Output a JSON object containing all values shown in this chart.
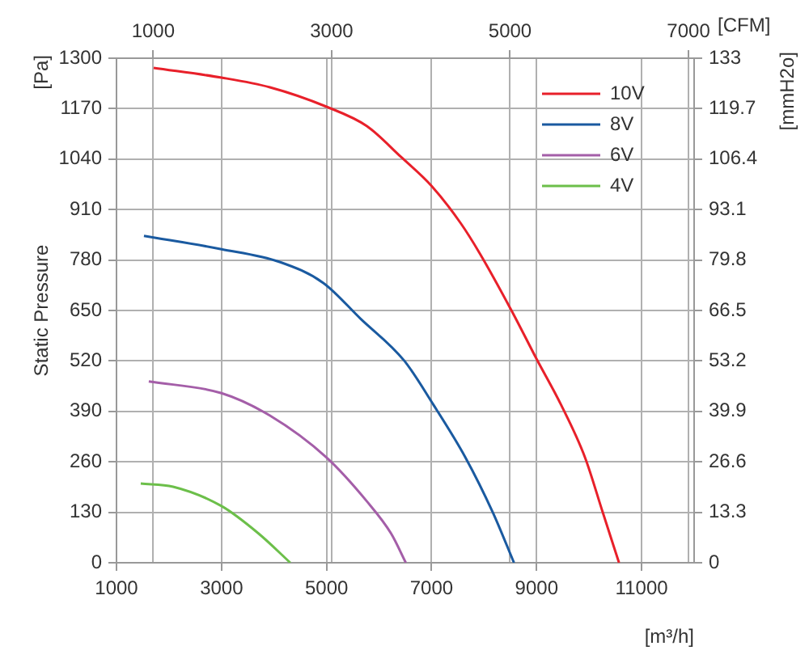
{
  "chart_data": {
    "type": "line",
    "ylabel": "Static Pressure",
    "y2label": "[mmH2o]",
    "xlabel": "[m³/h]",
    "x2label": "[CFM]",
    "annotations": [
      "[Pa]"
    ],
    "xlim": [
      1000,
      12000
    ],
    "xticks": [
      1000,
      3000,
      5000,
      7000,
      9000,
      11000
    ],
    "x2lim": [
      589,
      7063
    ],
    "x2ticks": [
      1000,
      3000,
      5000,
      7000
    ],
    "ylim": [
      0,
      1300
    ],
    "yticks": [
      0,
      130,
      260,
      390,
      520,
      650,
      780,
      910,
      1040,
      1170,
      1300
    ],
    "y2lim": [
      0,
      133
    ],
    "y2ticks": [
      0,
      13.3,
      26.6,
      39.9,
      53.2,
      66.5,
      79.8,
      93.1,
      106.4,
      119.7,
      133
    ],
    "grid": true,
    "legend": "top right",
    "marker": "none",
    "line_style": "solid",
    "series": [
      {
        "name": "10V",
        "color": "#e8202a",
        "x": [
          1708,
          3000,
          3923,
          5000,
          5769,
          6415,
          7000,
          7554,
          7923,
          8538,
          9000,
          9462,
          9923,
          10262,
          10570
        ],
        "values": [
          1275,
          1250,
          1225,
          1175,
          1125,
          1046,
          971,
          875,
          796,
          646,
          525,
          408,
          271,
          129,
          0
        ]
      },
      {
        "name": "8V",
        "color": "#1a5aa0",
        "x": [
          1523,
          3000,
          4108,
          4938,
          5646,
          6477,
          7031,
          7646,
          8169,
          8570
        ],
        "values": [
          842,
          808,
          775,
          721,
          629,
          521,
          408,
          271,
          129,
          0
        ]
      },
      {
        "name": "6V",
        "color": "#a45ea8",
        "x": [
          1615,
          3000,
          3923,
          5000,
          5769,
          6231,
          6510
        ],
        "values": [
          467,
          437,
          379,
          271,
          158,
          75,
          0
        ]
      },
      {
        "name": "4V",
        "color": "#6cbf4a",
        "x": [
          1462,
          2077,
          3000,
          3708,
          4310
        ],
        "values": [
          204,
          196,
          146,
          75,
          0
        ]
      }
    ]
  }
}
